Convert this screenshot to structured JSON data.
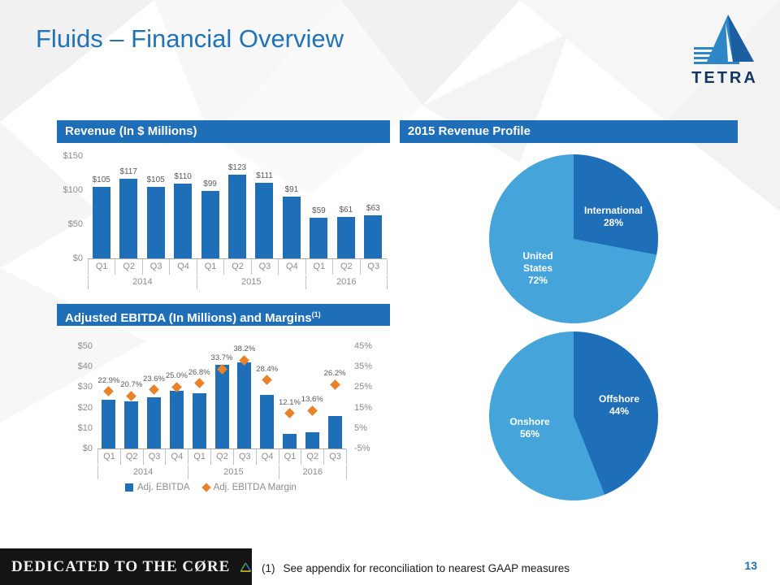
{
  "page": {
    "title": "Fluids – Financial Overview",
    "page_number": "13",
    "footnote_marker": "(1)",
    "footnote_text": "See appendix for reconciliation to nearest GAAP measures",
    "footer_brand": "DEDICATED TO THE CØRE"
  },
  "logo": {
    "brand": "TETRA"
  },
  "sections": {
    "revenue_header": "Revenue (In $ Millions)",
    "profile_header": "2015 Revenue Profile",
    "ebitda_header": "Adjusted EBITDA (In Millions) and Margins",
    "ebitda_header_sup": "(1)"
  },
  "colors": {
    "primary_blue": "#1f6eb8",
    "light_blue": "#45a5da",
    "accent_orange": "#e8832a"
  },
  "chart_data": [
    {
      "type": "bar",
      "title": "Revenue (In $ Millions)",
      "categories": [
        "Q1",
        "Q2",
        "Q3",
        "Q4",
        "Q1",
        "Q2",
        "Q3",
        "Q4",
        "Q1",
        "Q2",
        "Q3"
      ],
      "year_groups": [
        {
          "label": "2014",
          "span": 4
        },
        {
          "label": "2015",
          "span": 4
        },
        {
          "label": "2016",
          "span": 3
        }
      ],
      "values": [
        105,
        117,
        105,
        110,
        99,
        123,
        111,
        91,
        59,
        61,
        63
      ],
      "bar_labels": [
        "$105",
        "$117",
        "$105",
        "$110",
        "$99",
        "$123",
        "$111",
        "$91",
        "$59",
        "$61",
        "$63"
      ],
      "ylim": [
        0,
        150
      ],
      "yticks": [
        "$150",
        "$100",
        "$50",
        "$0"
      ],
      "bar_color": "#1f6eb8"
    },
    {
      "type": "pie",
      "title": "2015 Revenue Profile",
      "slices": [
        {
          "label": "International",
          "pct": 28,
          "pct_text": "28%",
          "color": "#1f6eb8"
        },
        {
          "label": "United States",
          "pct": 72,
          "pct_text": "72%",
          "color": "#45a5da"
        }
      ]
    },
    {
      "type": "bar+line",
      "title": "Adjusted EBITDA (In Millions) and Margins (1)",
      "categories": [
        "Q1",
        "Q2",
        "Q3",
        "Q4",
        "Q1",
        "Q2",
        "Q3",
        "Q4",
        "Q1",
        "Q2",
        "Q3"
      ],
      "year_groups": [
        {
          "label": "2014",
          "span": 4
        },
        {
          "label": "2015",
          "span": 4
        },
        {
          "label": "2016",
          "span": 3
        }
      ],
      "series": [
        {
          "name": "Adj. EBITDA",
          "type": "bar",
          "values": [
            24,
            23,
            25,
            28,
            27,
            41,
            42,
            26,
            7,
            8,
            16
          ],
          "color": "#1f6eb8"
        },
        {
          "name": "Adj. EBITDA Margin",
          "type": "scatter-diamond",
          "values": [
            22.9,
            20.7,
            23.6,
            25.0,
            26.8,
            33.7,
            38.2,
            28.4,
            12.1,
            13.6,
            26.2
          ],
          "labels": [
            "22.9%",
            "20.7%",
            "23.6%",
            "25.0%",
            "26.8%",
            "33.7%",
            "38.2%",
            "28.4%",
            "12.1%",
            "13.6%",
            "26.2%"
          ],
          "color": "#e8832a"
        }
      ],
      "left_axis": {
        "ticks": [
          "$50",
          "$40",
          "$30",
          "$20",
          "$10",
          "$0"
        ],
        "lim": [
          0,
          50
        ]
      },
      "right_axis": {
        "ticks": [
          "45%",
          "35%",
          "25%",
          "15%",
          "5%",
          "-5%"
        ],
        "lim": [
          -5,
          45
        ]
      }
    },
    {
      "type": "pie",
      "slices": [
        {
          "label": "Offshore",
          "pct": 44,
          "pct_text": "44%",
          "color": "#1f6eb8"
        },
        {
          "label": "Onshore",
          "pct": 56,
          "pct_text": "56%",
          "color": "#45a5da"
        }
      ]
    }
  ]
}
